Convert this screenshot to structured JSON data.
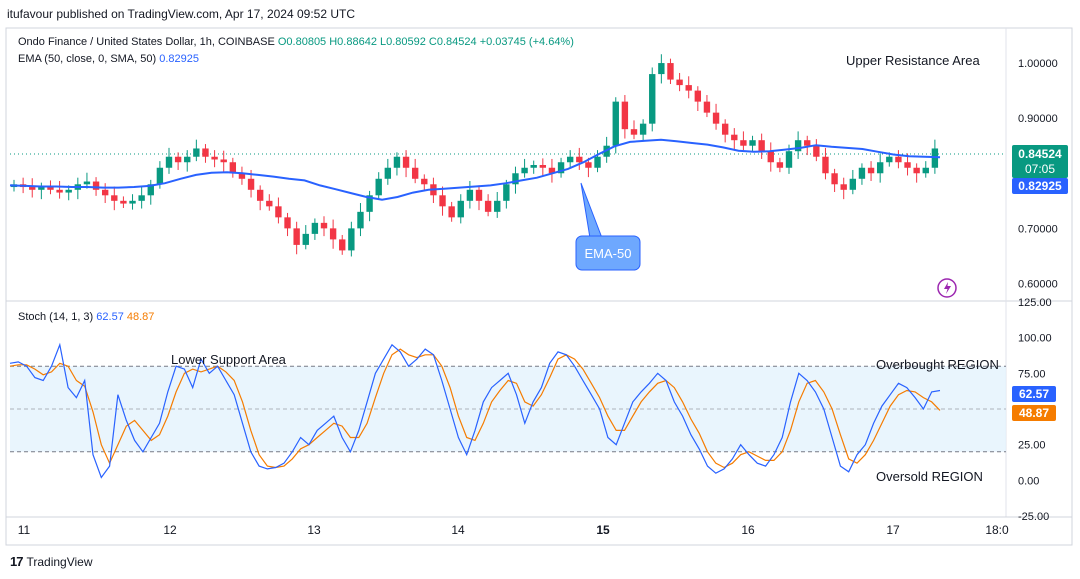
{
  "header": {
    "published": "itufavour published on TradingView.com, Apr 17, 2024 09:52 UTC"
  },
  "legend": {
    "symbol": "Ondo Finance / United States Dollar, 1h, COINBASE",
    "ohlc": "O0.80805  H0.88642  L0.80592  C0.84524  +0.03745 (+4.64%)",
    "ema_label": "EMA (50, close, 0, SMA, 50)",
    "ema_value": "0.82925",
    "stoch_label": "Stoch (14, 1, 3)",
    "stoch_k": "62.57",
    "stoch_d": "48.87"
  },
  "annotations": {
    "upper": "Upper Resistance Area",
    "lower": "Lower Support Area",
    "overbought": "Overbought REGION",
    "oversold": "Oversold REGION",
    "ema_callout": "EMA-50"
  },
  "price_badges": {
    "price": "0.84524",
    "countdown": "07:05",
    "ema": "0.82925",
    "k": "62.57",
    "d": "48.87"
  },
  "footer": {
    "logo": "TradingView"
  },
  "colors": {
    "up": "#089981",
    "down": "#f23645",
    "ema": "#2962ff",
    "stoch_k": "#2962ff",
    "stoch_d": "#f57c00",
    "band": "#e3f2fd"
  },
  "chart_data": [
    {
      "type": "candlestick",
      "title": "Ondo Finance / United States Dollar, 1h, COINBASE",
      "ylim": [
        0.57,
        1.06
      ],
      "y_ticks": [
        "1.00000",
        "0.90000",
        "0.70000",
        "0.60000"
      ],
      "x_ticks": [
        "11",
        "12",
        "13",
        "14",
        "15",
        "16",
        "17",
        "18:0"
      ],
      "current_price": 0.84524,
      "series": [
        {
          "name": "Price (close, approx.)",
          "values": [
            0.78,
            0.775,
            0.77,
            0.775,
            0.77,
            0.765,
            0.77,
            0.78,
            0.785,
            0.77,
            0.76,
            0.75,
            0.745,
            0.75,
            0.76,
            0.78,
            0.81,
            0.83,
            0.82,
            0.83,
            0.845,
            0.83,
            0.825,
            0.82,
            0.8,
            0.79,
            0.77,
            0.75,
            0.74,
            0.72,
            0.7,
            0.67,
            0.69,
            0.71,
            0.7,
            0.68,
            0.66,
            0.7,
            0.73,
            0.76,
            0.79,
            0.81,
            0.83,
            0.81,
            0.79,
            0.78,
            0.76,
            0.74,
            0.72,
            0.75,
            0.77,
            0.75,
            0.73,
            0.75,
            0.78,
            0.8,
            0.81,
            0.815,
            0.81,
            0.8,
            0.82,
            0.83,
            0.82,
            0.81,
            0.83,
            0.85,
            0.93,
            0.88,
            0.87,
            0.89,
            0.98,
            1.0,
            0.97,
            0.96,
            0.95,
            0.93,
            0.91,
            0.89,
            0.87,
            0.86,
            0.85,
            0.86,
            0.84,
            0.82,
            0.81,
            0.84,
            0.86,
            0.85,
            0.83,
            0.8,
            0.78,
            0.77,
            0.79,
            0.81,
            0.8,
            0.82,
            0.83,
            0.82,
            0.81,
            0.8,
            0.81,
            0.845
          ]
        },
        {
          "name": "EMA (50, close, 0, SMA, 50)",
          "values": [
            0.778,
            0.777,
            0.776,
            0.776,
            0.775,
            0.775,
            0.774,
            0.774,
            0.775,
            0.777,
            0.782,
            0.79,
            0.797,
            0.801,
            0.802,
            0.8,
            0.797,
            0.794,
            0.79,
            0.787,
            0.778,
            0.771,
            0.764,
            0.757,
            0.752,
            0.757,
            0.765,
            0.77,
            0.772,
            0.774,
            0.776,
            0.778,
            0.782,
            0.787,
            0.792,
            0.8,
            0.808,
            0.82,
            0.835,
            0.849,
            0.857,
            0.859,
            0.861,
            0.858,
            0.855,
            0.852,
            0.847,
            0.841,
            0.839,
            0.84,
            0.843,
            0.846,
            0.851,
            0.848,
            0.846,
            0.844,
            0.839,
            0.834,
            0.831,
            0.83,
            0.829
          ]
        }
      ]
    },
    {
      "type": "line",
      "title": "Stoch (14, 1, 3)",
      "ylim": [
        -25,
        125
      ],
      "y_ticks": [
        "125.00",
        "100.00",
        "75.00",
        "50.00",
        "25.00",
        "0.00",
        "-25.00"
      ],
      "bands": {
        "upper": 80,
        "middle": 50,
        "lower": 20
      },
      "series": [
        {
          "name": "%K",
          "values": [
            82,
            83,
            80,
            72,
            70,
            80,
            95,
            65,
            58,
            70,
            18,
            2,
            10,
            60,
            42,
            28,
            20,
            30,
            40,
            62,
            80,
            78,
            65,
            85,
            75,
            80,
            70,
            60,
            40,
            20,
            10,
            8,
            9,
            12,
            20,
            30,
            25,
            35,
            40,
            45,
            30,
            20,
            35,
            55,
            75,
            85,
            95,
            90,
            80,
            85,
            92,
            88,
            70,
            50,
            30,
            18,
            35,
            55,
            65,
            70,
            75,
            60,
            40,
            55,
            65,
            82,
            90,
            88,
            80,
            70,
            60,
            50,
            30,
            25,
            40,
            55,
            62,
            68,
            75,
            70,
            55,
            45,
            32,
            22,
            10,
            5,
            8,
            15,
            25,
            18,
            12,
            10,
            18,
            30,
            55,
            75,
            70,
            62,
            50,
            30,
            10,
            6,
            18,
            25,
            40,
            52,
            60,
            68,
            65,
            58,
            50,
            62,
            63
          ]
        },
        {
          "name": "%D",
          "values": [
            80,
            81,
            81,
            78,
            74,
            76,
            82,
            80,
            70,
            66,
            48,
            25,
            12,
            25,
            38,
            42,
            35,
            28,
            32,
            45,
            62,
            75,
            78,
            76,
            78,
            80,
            76,
            70,
            55,
            35,
            18,
            10,
            9,
            10,
            15,
            22,
            25,
            30,
            35,
            40,
            38,
            30,
            30,
            40,
            58,
            75,
            88,
            92,
            88,
            86,
            88,
            88,
            80,
            65,
            45,
            30,
            28,
            40,
            55,
            63,
            70,
            68,
            55,
            52,
            60,
            72,
            85,
            88,
            85,
            78,
            68,
            58,
            45,
            35,
            35,
            45,
            55,
            62,
            68,
            70,
            65,
            55,
            43,
            33,
            20,
            12,
            9,
            12,
            18,
            20,
            17,
            14,
            14,
            20,
            35,
            55,
            68,
            70,
            62,
            50,
            32,
            15,
            12,
            18,
            28,
            40,
            52,
            60,
            63,
            62,
            58,
            55,
            49
          ]
        }
      ]
    }
  ]
}
